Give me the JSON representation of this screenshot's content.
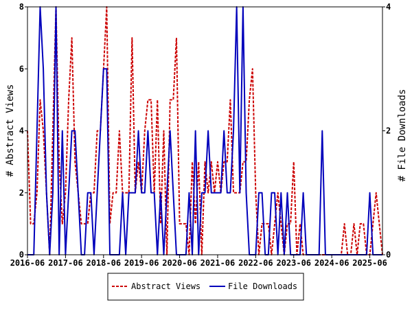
{
  "chart_data": {
    "type": "line",
    "left_axis_label": "# Abstract Views",
    "right_axis_label": "# File Downloads",
    "left_ylim": [
      0,
      8
    ],
    "right_ylim": [
      0,
      4
    ],
    "left_ticks": [
      "0",
      "2",
      "4",
      "6",
      "8"
    ],
    "right_ticks": [
      "0",
      "2",
      "4"
    ],
    "x_tick_labels": [
      "2016-06",
      "2017-06",
      "2018-06",
      "2019-06",
      "2020-06",
      "2021-06",
      "2022-06",
      "2023-06",
      "2024-06",
      "2025-06"
    ],
    "x_tick_months": [
      0,
      12,
      24,
      36,
      48,
      60,
      72,
      84,
      96,
      108
    ],
    "x_range_months": [
      0,
      112
    ],
    "legend_placement": "bottom-center",
    "series": [
      {
        "name": "Abstract Views",
        "axis": "left",
        "color": "#cc0000",
        "style": "dashed",
        "values": [
          4,
          1,
          1,
          2,
          5,
          4,
          2,
          0,
          4,
          8,
          3,
          1,
          2,
          5,
          7,
          3,
          2,
          1,
          1,
          1,
          2,
          2,
          4,
          4,
          6,
          8,
          1,
          2,
          2,
          4,
          2,
          2,
          2,
          7,
          2,
          3,
          2,
          4,
          5,
          5,
          2,
          5,
          1,
          4,
          0,
          5,
          5,
          7,
          1,
          1,
          1,
          0,
          3,
          1,
          3,
          0,
          3,
          2,
          3,
          2,
          3,
          2,
          3,
          3,
          5,
          2,
          2,
          2,
          3,
          3,
          5,
          6,
          2,
          0,
          1,
          1,
          1,
          0,
          1,
          2,
          1,
          0,
          1,
          1,
          3,
          0,
          1,
          0,
          0,
          0,
          0,
          0,
          0,
          0,
          0,
          0,
          0,
          0,
          0,
          0,
          1,
          0,
          0,
          1,
          0,
          1,
          1,
          0,
          0,
          1,
          2,
          1,
          0
        ]
      },
      {
        "name": "File Downloads",
        "axis": "right",
        "color": "#0000bb",
        "style": "solid",
        "values": [
          0,
          0,
          0,
          2,
          4,
          3,
          1,
          0,
          1,
          4,
          0,
          2,
          0,
          1,
          2,
          2,
          1,
          0,
          0,
          1,
          1,
          0,
          1,
          2,
          3,
          3,
          0,
          0,
          0,
          0,
          1,
          0,
          1,
          1,
          1,
          2,
          1,
          1,
          2,
          1,
          1,
          0,
          1,
          0,
          1,
          2,
          1,
          0,
          0,
          0,
          0,
          1,
          0,
          2,
          0,
          1,
          1,
          2,
          1,
          1,
          1,
          1,
          2,
          1,
          1,
          2,
          4,
          1,
          4,
          1,
          0,
          0,
          0,
          1,
          1,
          0,
          0,
          1,
          1,
          0,
          1,
          0,
          1,
          0,
          0,
          0,
          0,
          1,
          0,
          0,
          0,
          0,
          0,
          2,
          0,
          0,
          0,
          0,
          0,
          0,
          0,
          0,
          0,
          0,
          0,
          0,
          0,
          0,
          1,
          0,
          0,
          0,
          0
        ]
      }
    ]
  }
}
